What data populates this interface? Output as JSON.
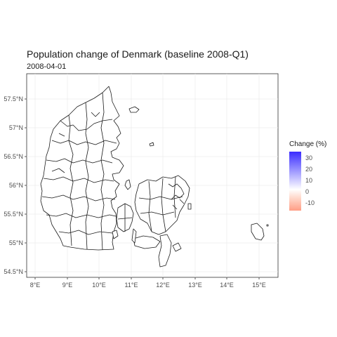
{
  "title": "Population change of Denmark (baseline 2008-Q1)",
  "subtitle": "2008-04-01",
  "y_ticks": [
    "57.5°N",
    "57°N",
    "56.5°N",
    "56°N",
    "55.5°N",
    "55°N",
    "54.5°N"
  ],
  "x_ticks": [
    "8°E",
    "9°E",
    "10°E",
    "11°E",
    "12°E",
    "13°E",
    "14°E",
    "15°E"
  ],
  "legend": {
    "title": "Change (%)",
    "labels": [
      "30",
      "20",
      "10",
      "0",
      "-10"
    ],
    "colors": {
      "high": "#3b2cff",
      "mid": "#ffffff",
      "low": "#ff9d85"
    }
  }
}
